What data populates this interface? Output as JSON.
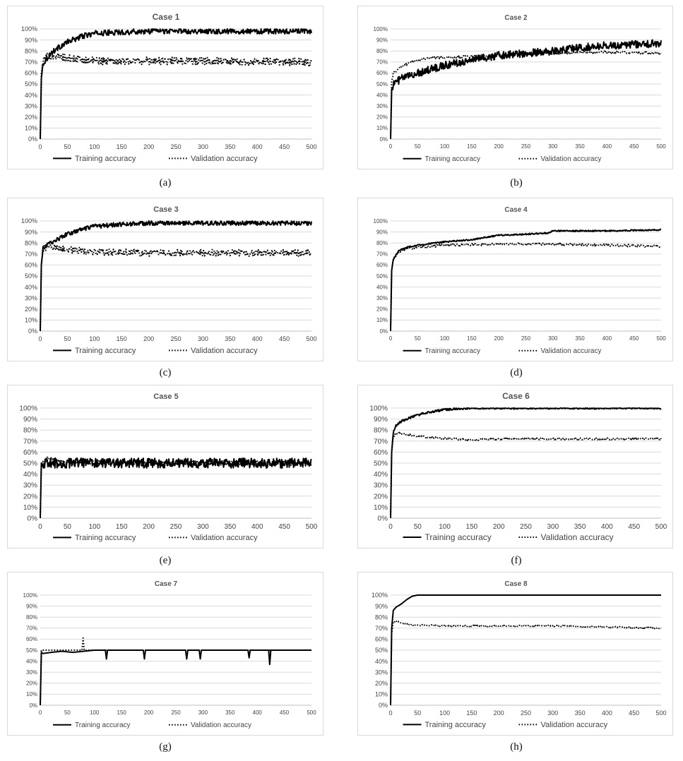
{
  "figure": {
    "captions": [
      "(a)",
      "(b)",
      "(c)",
      "(d)",
      "(e)",
      "(f)",
      "(g)",
      "(h)"
    ]
  },
  "chart_data": [
    {
      "type": "line",
      "title": "Case 1",
      "x_ticks": [
        "0",
        "50",
        "100",
        "150",
        "200",
        "250",
        "300",
        "350",
        "400",
        "450",
        "500"
      ],
      "y_ticks": [
        "0%",
        "10%",
        "20%",
        "30%",
        "40%",
        "50%",
        "60%",
        "70%",
        "80%",
        "90%",
        "100%"
      ],
      "xlim": [
        0,
        500
      ],
      "ylim": [
        0,
        100
      ],
      "grid": "horizontal",
      "legend": "bottom",
      "series": [
        {
          "name": "Training accuracy",
          "style": "solid",
          "x": [
            0,
            2,
            5,
            10,
            20,
            30,
            50,
            75,
            100,
            150,
            200,
            250,
            300,
            400,
            500
          ],
          "y": [
            0,
            55,
            68,
            72,
            78,
            82,
            88,
            93,
            96,
            97,
            98,
            98,
            98,
            98,
            98
          ],
          "noise": 2.5
        },
        {
          "name": "Validation accuracy",
          "style": "dotted",
          "x": [
            0,
            2,
            5,
            10,
            20,
            30,
            50,
            100,
            200,
            300,
            400,
            500
          ],
          "y": [
            0,
            60,
            70,
            74,
            76,
            75,
            73,
            71,
            71,
            71,
            70,
            70
          ],
          "noise": 3.5
        }
      ]
    },
    {
      "type": "line",
      "title": "Case 2",
      "x_ticks": [
        "0",
        "50",
        "100",
        "150",
        "200",
        "250",
        "300",
        "350",
        "400",
        "450",
        "500"
      ],
      "y_ticks": [
        "0%",
        "10%",
        "20%",
        "30%",
        "40%",
        "50%",
        "60%",
        "70%",
        "80%",
        "90%",
        "100%"
      ],
      "xlim": [
        0,
        500
      ],
      "ylim": [
        0,
        100
      ],
      "grid": "horizontal",
      "legend": "bottom",
      "series": [
        {
          "name": "Training accuracy",
          "style": "solid",
          "x": [
            0,
            2,
            5,
            20,
            50,
            100,
            150,
            200,
            250,
            300,
            350,
            400,
            450,
            500
          ],
          "y": [
            0,
            45,
            50,
            55,
            60,
            67,
            72,
            76,
            78,
            80,
            83,
            85,
            86,
            87
          ],
          "noise": 3.5
        },
        {
          "name": "Validation accuracy",
          "style": "dotted",
          "x": [
            0,
            2,
            5,
            20,
            50,
            75,
            100,
            150,
            200,
            300,
            400,
            500
          ],
          "y": [
            0,
            52,
            60,
            66,
            72,
            74,
            74,
            75,
            76,
            78,
            79,
            78
          ],
          "noise": 1
        }
      ]
    },
    {
      "type": "line",
      "title": "Case 3",
      "x_ticks": [
        "0",
        "50",
        "100",
        "150",
        "200",
        "250",
        "300",
        "350",
        "400",
        "450",
        "500"
      ],
      "y_ticks": [
        "0%",
        "10%",
        "20%",
        "30%",
        "40%",
        "50%",
        "60%",
        "70%",
        "80%",
        "90%",
        "100%"
      ],
      "xlim": [
        0,
        500
      ],
      "ylim": [
        0,
        100
      ],
      "grid": "horizontal",
      "legend": "bottom",
      "series": [
        {
          "name": "Training accuracy",
          "style": "solid",
          "x": [
            0,
            2,
            5,
            15,
            30,
            50,
            75,
            100,
            150,
            200,
            300,
            400,
            500
          ],
          "y": [
            0,
            60,
            75,
            79,
            83,
            88,
            92,
            95,
            97,
            98,
            98,
            98,
            98
          ],
          "noise": 2
        },
        {
          "name": "Validation accuracy",
          "style": "dotted",
          "x": [
            0,
            2,
            5,
            15,
            30,
            50,
            100,
            200,
            300,
            400,
            500
          ],
          "y": [
            0,
            60,
            74,
            77,
            76,
            74,
            72,
            71,
            71,
            71,
            71
          ],
          "noise": 3
        }
      ]
    },
    {
      "type": "line",
      "title": "Case 4",
      "x_ticks": [
        "0",
        "50",
        "100",
        "150",
        "200",
        "250",
        "300",
        "350",
        "400",
        "450",
        "500"
      ],
      "y_ticks": [
        "0%",
        "10%",
        "20%",
        "30%",
        "40%",
        "50%",
        "60%",
        "70%",
        "80%",
        "90%",
        "100%"
      ],
      "xlim": [
        0,
        500
      ],
      "ylim": [
        0,
        100
      ],
      "grid": "horizontal",
      "legend": "bottom",
      "series": [
        {
          "name": "Training accuracy",
          "style": "solid",
          "x": [
            0,
            2,
            5,
            15,
            30,
            50,
            100,
            150,
            200,
            250,
            290,
            300,
            400,
            500
          ],
          "y": [
            0,
            55,
            65,
            73,
            76,
            78,
            81,
            83,
            87,
            88,
            89,
            91,
            91,
            92
          ],
          "noise": 0.6
        },
        {
          "name": "Validation accuracy",
          "style": "dotted",
          "x": [
            0,
            2,
            5,
            15,
            30,
            50,
            100,
            200,
            300,
            400,
            500
          ],
          "y": [
            0,
            55,
            65,
            72,
            75,
            76,
            78,
            79,
            79,
            78,
            77
          ],
          "noise": 1
        }
      ]
    },
    {
      "type": "line",
      "title": "Case 5",
      "x_ticks": [
        "0",
        "50",
        "100",
        "150",
        "200",
        "250",
        "300",
        "350",
        "400",
        "450",
        "500"
      ],
      "y_ticks": [
        "0%",
        "10%",
        "20%",
        "30%",
        "40%",
        "50%",
        "60%",
        "70%",
        "80%",
        "90%",
        "100%"
      ],
      "xlim": [
        0,
        500
      ],
      "ylim": [
        0,
        100
      ],
      "grid": "horizontal",
      "legend": "bottom",
      "series": [
        {
          "name": "Training accuracy",
          "style": "solid",
          "x": [
            0,
            2,
            5,
            50,
            100,
            200,
            300,
            400,
            500
          ],
          "y": [
            0,
            50,
            50,
            50,
            50,
            50,
            50,
            50,
            50
          ],
          "noise": 4.5
        },
        {
          "name": "Validation accuracy",
          "style": "dotted",
          "x": [
            0,
            2,
            5,
            15,
            30,
            50,
            100,
            200,
            300,
            400,
            500
          ],
          "y": [
            0,
            50,
            50,
            55,
            52,
            50,
            50,
            50,
            50,
            50,
            50
          ],
          "noise": 2
        }
      ]
    },
    {
      "type": "line",
      "title": "Case 6",
      "x_ticks": [
        "0",
        "50",
        "100",
        "150",
        "200",
        "250",
        "300",
        "350",
        "400",
        "450",
        "500"
      ],
      "y_ticks": [
        "0%",
        "10%",
        "20%",
        "30%",
        "40%",
        "50%",
        "60%",
        "70%",
        "80%",
        "90%",
        "100%"
      ],
      "xlim": [
        0,
        500
      ],
      "ylim": [
        0,
        100
      ],
      "grid": "horizontal",
      "legend": "bottom",
      "series": [
        {
          "name": "Training accuracy",
          "style": "solid",
          "x": [
            0,
            2,
            5,
            10,
            20,
            40,
            60,
            80,
            100,
            130,
            150,
            200,
            300,
            400,
            500
          ],
          "y": [
            0,
            60,
            78,
            84,
            88,
            92,
            95,
            97,
            98.5,
            99.5,
            100,
            100,
            100,
            100,
            100
          ],
          "noise": 1
        },
        {
          "name": "Validation accuracy",
          "style": "dotted",
          "x": [
            0,
            2,
            5,
            10,
            20,
            40,
            80,
            150,
            200,
            300,
            400,
            500
          ],
          "y": [
            0,
            60,
            74,
            77,
            77,
            75,
            73,
            71,
            72,
            72,
            72,
            72
          ],
          "noise": 0.8
        }
      ]
    },
    {
      "type": "line",
      "title": "Case 7",
      "x_ticks": [
        "0",
        "50",
        "100",
        "150",
        "200",
        "250",
        "300",
        "350",
        "400",
        "450",
        "500"
      ],
      "y_ticks": [
        "0%",
        "10%",
        "20%",
        "30%",
        "40%",
        "50%",
        "60%",
        "70%",
        "80%",
        "90%",
        "100%"
      ],
      "xlim": [
        0,
        500
      ],
      "ylim": [
        0,
        100
      ],
      "grid": "horizontal",
      "legend": "bottom",
      "series": [
        {
          "name": "Training accuracy",
          "style": "solid",
          "x": [
            0,
            2,
            5,
            20,
            40,
            60,
            80,
            100,
            120,
            122,
            124,
            190,
            192,
            194,
            268,
            270,
            272,
            293,
            295,
            297,
            383,
            385,
            387,
            421,
            423,
            425,
            500
          ],
          "y": [
            0,
            48,
            47,
            48,
            49,
            48,
            49,
            50,
            50,
            42,
            50,
            50,
            42,
            50,
            50,
            42,
            50,
            50,
            42,
            50,
            50,
            43,
            50,
            50,
            37,
            50,
            50
          ],
          "noise": 0
        },
        {
          "name": "Validation accuracy",
          "style": "dotted",
          "x": [
            0,
            2,
            5,
            40,
            77,
            79,
            81,
            100,
            200,
            300,
            400,
            500
          ],
          "y": [
            0,
            50,
            50,
            50,
            50,
            61,
            50,
            50,
            50,
            50,
            50,
            50
          ],
          "noise": 0
        }
      ]
    },
    {
      "type": "line",
      "title": "Case 8",
      "x_ticks": [
        "0",
        "50",
        "100",
        "150",
        "200",
        "250",
        "300",
        "350",
        "400",
        "450",
        "500"
      ],
      "y_ticks": [
        "0%",
        "10%",
        "20%",
        "30%",
        "40%",
        "50%",
        "60%",
        "70%",
        "80%",
        "90%",
        "100%"
      ],
      "xlim": [
        0,
        500
      ],
      "ylim": [
        0,
        100
      ],
      "grid": "horizontal",
      "legend": "bottom",
      "series": [
        {
          "name": "Training accuracy",
          "style": "solid",
          "x": [
            0,
            2,
            5,
            10,
            20,
            30,
            40,
            50,
            100,
            200,
            300,
            400,
            500
          ],
          "y": [
            0,
            70,
            86,
            89,
            92,
            96,
            99,
            100,
            100,
            100,
            100,
            100,
            100
          ],
          "noise": 0
        },
        {
          "name": "Validation accuracy",
          "style": "dotted",
          "x": [
            0,
            2,
            5,
            10,
            20,
            40,
            100,
            200,
            300,
            400,
            500
          ],
          "y": [
            0,
            65,
            75,
            77,
            75,
            73,
            72,
            72,
            72,
            71,
            70
          ],
          "noise": 0.6
        }
      ]
    }
  ]
}
